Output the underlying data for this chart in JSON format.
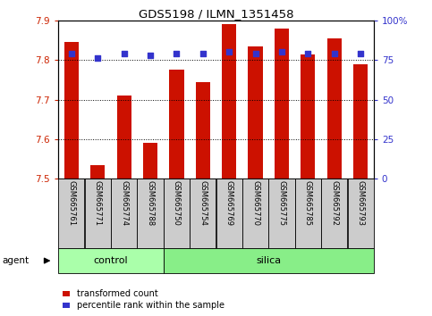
{
  "title": "GDS5198 / ILMN_1351458",
  "samples": [
    "GSM665761",
    "GSM665771",
    "GSM665774",
    "GSM665788",
    "GSM665750",
    "GSM665754",
    "GSM665769",
    "GSM665770",
    "GSM665775",
    "GSM665785",
    "GSM665792",
    "GSM665793"
  ],
  "transformed_count": [
    7.845,
    7.535,
    7.71,
    7.59,
    7.775,
    7.745,
    7.89,
    7.835,
    7.88,
    7.815,
    7.855,
    7.79
  ],
  "percentile_rank": [
    79,
    76,
    79,
    78,
    79,
    79,
    80,
    79,
    80,
    79,
    79,
    79
  ],
  "ylim_left": [
    7.5,
    7.9
  ],
  "ylim_right": [
    0,
    100
  ],
  "yticks_left": [
    7.5,
    7.6,
    7.7,
    7.8,
    7.9
  ],
  "yticks_right": [
    0,
    25,
    50,
    75,
    100
  ],
  "ytick_labels_right": [
    "0",
    "25",
    "50",
    "75",
    "100%"
  ],
  "bar_color": "#cc1100",
  "dot_color": "#3333cc",
  "bar_bottom": 7.5,
  "groups": [
    {
      "label": "control",
      "start": 0,
      "end": 4,
      "color": "#aaffaa"
    },
    {
      "label": "silica",
      "start": 4,
      "end": 12,
      "color": "#88ee88"
    }
  ],
  "agent_label": "agent",
  "legend_red_label": "transformed count",
  "legend_blue_label": "percentile rank within the sample",
  "grid_color": "black",
  "left_tick_color": "#cc2200",
  "right_tick_color": "#3333cc",
  "xtick_box_color": "#cccccc",
  "fig_bg": "#ffffff"
}
